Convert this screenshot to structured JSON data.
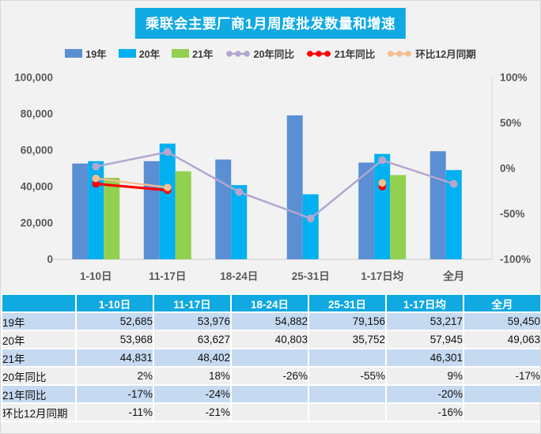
{
  "title": {
    "text": "乘联会主要厂商1月周度批发数量和增速"
  },
  "colors": {
    "accent_cyan": "#10A9E2",
    "bar_blue": "#5B8FD4",
    "bar_cyan": "#00B0F0",
    "bar_green": "#92D050",
    "line_purple": "#B3A6CF",
    "line_red": "#FF0000",
    "line_orange": "#F5BE8E",
    "axis_text": "#595959",
    "row_blue": "#C5D9F1",
    "row_gray": "#EFEFEF"
  },
  "chart_data": {
    "type": "bar",
    "subtype": "grouped-bars-with-percent-lines",
    "title": "乘联会主要厂商1月周度批发数量和增速",
    "categories": [
      "1-10日",
      "11-17日",
      "18-24日",
      "25-31日",
      "1-17日均",
      "全月"
    ],
    "bar_series": [
      {
        "name": "19年",
        "color": "#5B8FD4",
        "values": [
          52685,
          53976,
          54882,
          79156,
          53217,
          59450
        ]
      },
      {
        "name": "20年",
        "color": "#00B0F0",
        "values": [
          53968,
          63627,
          40803,
          35752,
          57945,
          49063
        ]
      },
      {
        "name": "21年",
        "color": "#92D050",
        "values": [
          44831,
          48402,
          null,
          null,
          46301,
          null
        ]
      }
    ],
    "line_series": [
      {
        "name": "20年同比",
        "color": "#B3A6CF",
        "values_pct": [
          2,
          18,
          -26,
          -55,
          9,
          -17
        ]
      },
      {
        "name": "21年同比",
        "color": "#FF0000",
        "values_pct": [
          -17,
          -24,
          null,
          null,
          -20,
          null
        ]
      },
      {
        "name": "环比12月同期",
        "color": "#F5BE8E",
        "values_pct": [
          -11,
          -21,
          null,
          null,
          -16,
          null
        ]
      }
    ],
    "left_axis": {
      "min": 0,
      "max": 100000,
      "ticks": [
        "0",
        "20,000",
        "40,000",
        "60,000",
        "80,000",
        "100,000"
      ]
    },
    "right_axis": {
      "min": -100,
      "max": 100,
      "ticks": [
        "-100%",
        "-50%",
        "0%",
        "50%",
        "100%"
      ]
    },
    "grid": false,
    "legend_position": "top"
  },
  "table": {
    "header": [
      "",
      "1-10日",
      "11-17日",
      "18-24日",
      "25-31日",
      "1-17日均",
      "全月"
    ],
    "rows": [
      {
        "label": "19年",
        "values": [
          "52,685",
          "53,976",
          "54,882",
          "79,156",
          "53,217",
          "59,450"
        ]
      },
      {
        "label": "20年",
        "values": [
          "53,968",
          "63,627",
          "40,803",
          "35,752",
          "57,945",
          "49,063"
        ]
      },
      {
        "label": "21年",
        "values": [
          "44,831",
          "48,402",
          "",
          "",
          "46,301",
          ""
        ]
      },
      {
        "label": "20年同比",
        "values": [
          "2%",
          "18%",
          "-26%",
          "-55%",
          "9%",
          "-17%"
        ]
      },
      {
        "label": "21年同比",
        "values": [
          "-17%",
          "-24%",
          "",
          "",
          "-20%",
          ""
        ]
      },
      {
        "label": "环比12月同期",
        "values": [
          "-11%",
          "-21%",
          "",
          "",
          "-16%",
          ""
        ]
      }
    ]
  }
}
